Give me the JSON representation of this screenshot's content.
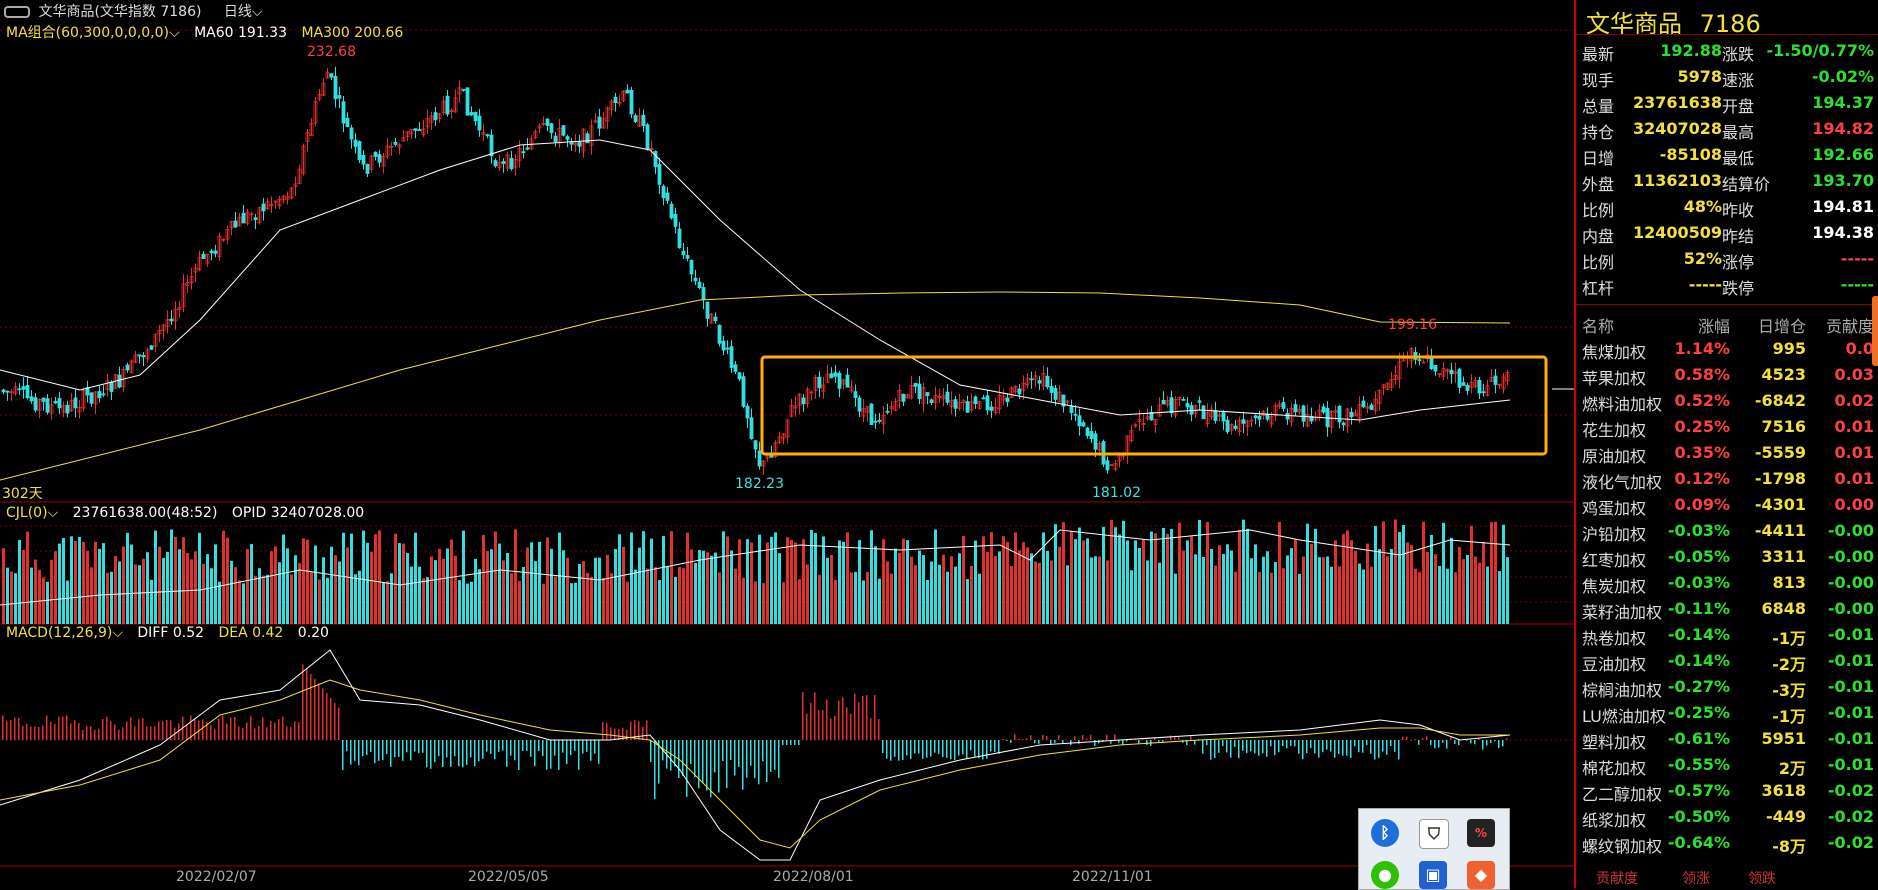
{
  "topbar": {
    "window_icon": "link-icon",
    "title": "文华商品(文华指数 7186)",
    "period": "日线",
    "period_icon": "chevron-down-icon"
  },
  "main_indicator": {
    "label": "MA组合(60,300,0,0,0,0)",
    "ma60_text": "MA60 191.33",
    "ma300_text": "MA300 200.66",
    "colors": {
      "ma60": "#ffffff",
      "ma300": "#f0e040"
    }
  },
  "price_annotations": {
    "high": "232.68",
    "low1": "182.23",
    "low2": "181.02",
    "recent_high": "199.16",
    "days": "302天"
  },
  "volume_indicator": {
    "label": "CJL(0)",
    "value_text": "23761638.00(48:52)",
    "opid_text": "OPID 32407028.00"
  },
  "macd_indicator": {
    "label": "MACD(12,26,9)",
    "diff_text": "DIFF 0.52",
    "dea_text": "DEA 0.42",
    "macd_text": "0.20"
  },
  "x_axis": [
    "2022/02/07",
    "2022/05/05",
    "2022/08/01",
    "2022/11/01"
  ],
  "colors": {
    "up": "#e03030",
    "down": "#30e0e0",
    "box": "#ffb000",
    "grid": "#8b0000"
  },
  "quote": {
    "name": "文华商品",
    "code": "7186",
    "rows": [
      {
        "l1": "最新",
        "v1": "192.88",
        "c1": "green",
        "l2": "涨跌",
        "v2": "-1.50/0.77%",
        "c2": "green"
      },
      {
        "l1": "现手",
        "v1": "5978",
        "c1": "yellow",
        "l2": "速涨",
        "v2": "-0.02%",
        "c2": "green"
      },
      {
        "l1": "总量",
        "v1": "23761638",
        "c1": "yellow",
        "l2": "开盘",
        "v2": "194.37",
        "c2": "green"
      },
      {
        "l1": "持仓",
        "v1": "32407028",
        "c1": "yellow",
        "l2": "最高",
        "v2": "194.82",
        "c2": "red"
      },
      {
        "l1": "日增",
        "v1": "-85108",
        "c1": "yellow",
        "l2": "最低",
        "v2": "192.66",
        "c2": "green"
      },
      {
        "l1": "外盘",
        "v1": "11362103",
        "c1": "yellow",
        "l2": "结算价",
        "v2": "193.70",
        "c2": "green"
      },
      {
        "l1": "比例",
        "v1": "48%",
        "c1": "yellow",
        "l2": "昨收",
        "v2": "194.81",
        "c2": "white"
      },
      {
        "l1": "内盘",
        "v1": "12400509",
        "c1": "yellow",
        "l2": "昨结",
        "v2": "194.38",
        "c2": "white"
      },
      {
        "l1": "比例",
        "v1": "52%",
        "c1": "yellow",
        "l2": "涨停",
        "v2": "-----",
        "c2": "red"
      },
      {
        "l1": "杠杆",
        "v1": "-----",
        "c1": "yellow",
        "l2": "跌停",
        "v2": "-----",
        "c2": "green"
      }
    ]
  },
  "contrib_headers": {
    "name": "名称",
    "pct": "涨幅",
    "day": "日增仓",
    "con": "贡献度"
  },
  "contrib": [
    {
      "name": "焦煤加权",
      "pct": "1.14%",
      "day": "995",
      "con": "0.0",
      "c": "red"
    },
    {
      "name": "苹果加权",
      "pct": "0.58%",
      "day": "4523",
      "con": "0.03",
      "c": "red"
    },
    {
      "name": "燃料油加权",
      "pct": "0.52%",
      "day": "-6842",
      "con": "0.02",
      "c": "red"
    },
    {
      "name": "花生加权",
      "pct": "0.25%",
      "day": "7516",
      "con": "0.01",
      "c": "red"
    },
    {
      "name": "原油加权",
      "pct": "0.35%",
      "day": "-5559",
      "con": "0.01",
      "c": "red"
    },
    {
      "name": "液化气加权",
      "pct": "0.12%",
      "day": "-1798",
      "con": "0.01",
      "c": "red"
    },
    {
      "name": "鸡蛋加权",
      "pct": "0.09%",
      "day": "-4301",
      "con": "0.00",
      "c": "red"
    },
    {
      "name": "沪铅加权",
      "pct": "-0.03%",
      "day": "-4411",
      "con": "-0.00",
      "c": "green"
    },
    {
      "name": "红枣加权",
      "pct": "-0.05%",
      "day": "3311",
      "con": "-0.00",
      "c": "green"
    },
    {
      "name": "焦炭加权",
      "pct": "-0.03%",
      "day": "813",
      "con": "-0.00",
      "c": "green"
    },
    {
      "name": "菜籽油加权",
      "pct": "-0.11%",
      "day": "6848",
      "con": "-0.00",
      "c": "green"
    },
    {
      "name": "热卷加权",
      "pct": "-0.14%",
      "day": "-1万",
      "con": "-0.01",
      "c": "green"
    },
    {
      "name": "豆油加权",
      "pct": "-0.14%",
      "day": "-2万",
      "con": "-0.01",
      "c": "green"
    },
    {
      "name": "棕榈油加权",
      "pct": "-0.27%",
      "day": "-3万",
      "con": "-0.01",
      "c": "green"
    },
    {
      "name": "LU燃油加权",
      "pct": "-0.25%",
      "day": "-1万",
      "con": "-0.01",
      "c": "green"
    },
    {
      "name": "塑料加权",
      "pct": "-0.61%",
      "day": "5951",
      "con": "-0.01",
      "c": "green"
    },
    {
      "name": "棉花加权",
      "pct": "-0.55%",
      "day": "2万",
      "con": "-0.01",
      "c": "green"
    },
    {
      "name": "乙二醇加权",
      "pct": "-0.57%",
      "day": "3618",
      "con": "-0.02",
      "c": "green"
    },
    {
      "name": "纸浆加权",
      "pct": "-0.50%",
      "day": "-449",
      "con": "-0.02",
      "c": "green"
    },
    {
      "name": "螺纹钢加权",
      "pct": "-0.64%",
      "day": "-8万",
      "con": "-0.02",
      "c": "green"
    }
  ],
  "tabs": [
    "贡献度",
    "领涨",
    "领跌"
  ],
  "tray": {
    "icons": [
      "bluetooth-icon",
      "shield-icon",
      "network-monitor-icon",
      "wechat-icon",
      "app-icon",
      "app-icon-2"
    ]
  }
}
